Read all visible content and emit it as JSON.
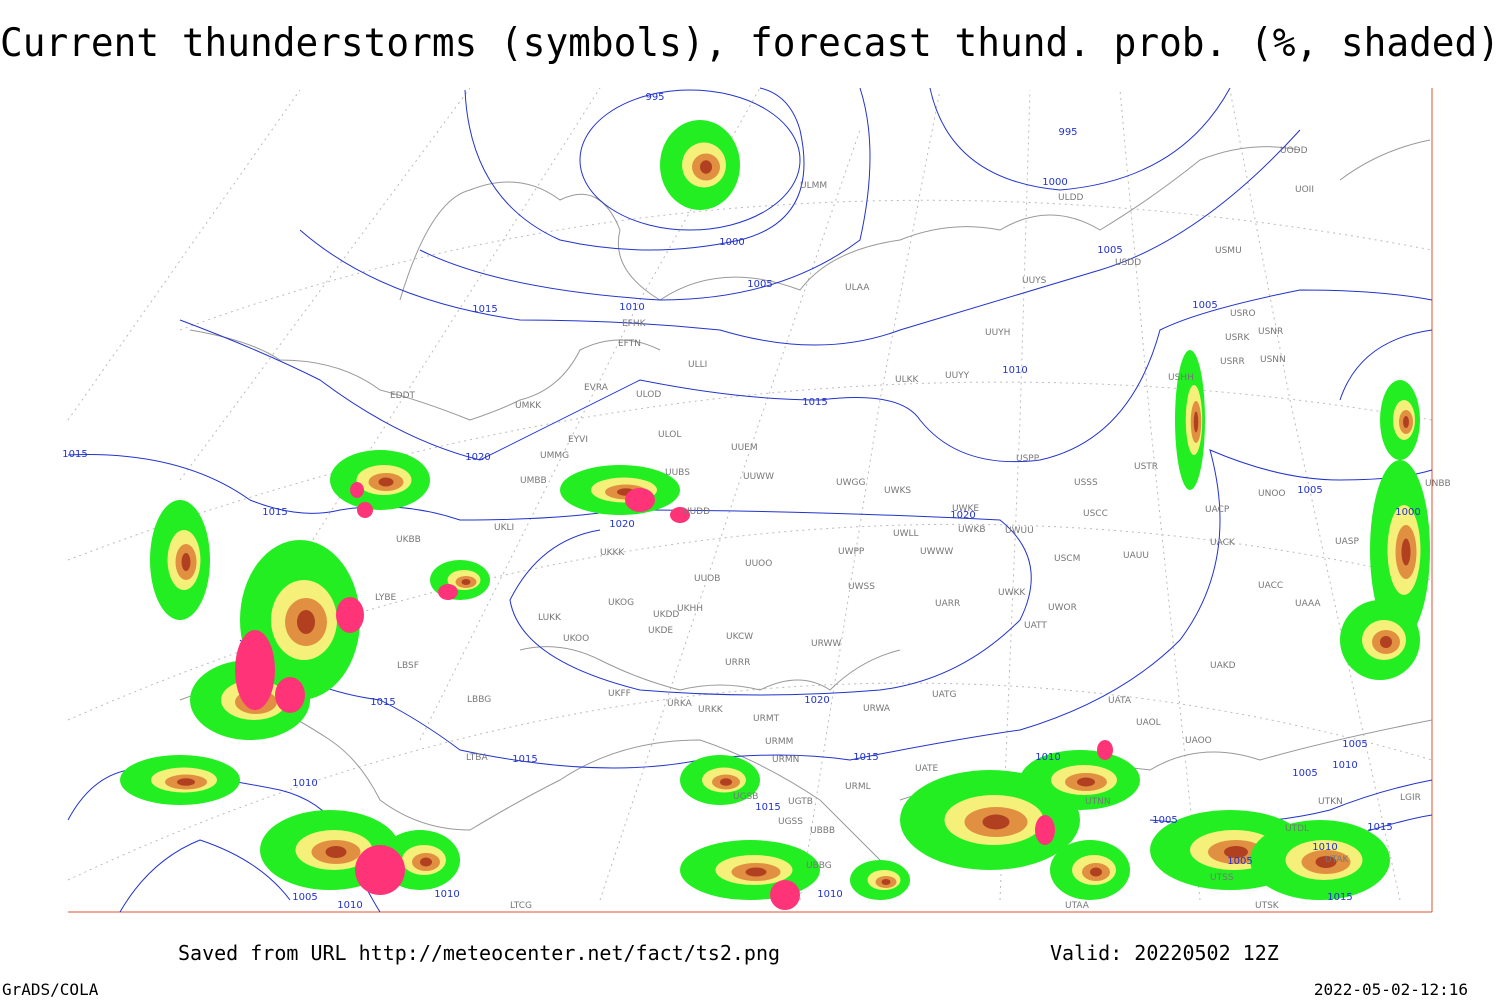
{
  "header": {
    "title": "Current thunderstorms (symbols), forecast thund. prob. (%, shaded)"
  },
  "footer": {
    "source": "Saved from URL http://meteocenter.net/fact/ts2.png",
    "valid": "Valid: 20220502 12Z",
    "software": "GrADS/COLA",
    "timestamp": "2022-05-02-12:16"
  },
  "isobar_labels": [
    "995",
    "995",
    "1000",
    "1000",
    "1005",
    "1005",
    "1005",
    "1010",
    "1010",
    "1015",
    "1015",
    "1020",
    "1020",
    "1015",
    "1015",
    "1020",
    "1015",
    "1020",
    "1015",
    "1015",
    "1015",
    "1010",
    "1010",
    "1005",
    "1010",
    "1010",
    "1010",
    "1005",
    "1000",
    "1005",
    "1010",
    "1005",
    "1005",
    "1015",
    "1010",
    "1005",
    "1015"
  ],
  "stations": [
    "ULMM",
    "ULDD",
    "UODD",
    "UOII",
    "USDD",
    "USMU",
    "ULAA",
    "UUYS",
    "USRO",
    "USRK",
    "USNR",
    "USRR",
    "USNN",
    "EFHK",
    "EFTN",
    "UUYH",
    "ULLI",
    "ULKK",
    "UUYY",
    "USHH",
    "EVRA",
    "ULOD",
    "EDDT",
    "UMKK",
    "UUEM",
    "ULOL",
    "EYVI",
    "UMMG",
    "UUWW",
    "UWGG",
    "UWKS",
    "USPP",
    "USTR",
    "USSS",
    "UNOO",
    "UNBB",
    "UMBB",
    "UUBS",
    "UUDD",
    "UWKE",
    "UWKB",
    "UWUU",
    "USCC",
    "UACP",
    "UACK",
    "UASP",
    "UKLI",
    "UKBB",
    "UKKK",
    "UWLL",
    "UWPP",
    "UWWW",
    "USCM",
    "UAUU",
    "UUOO",
    "UUOB",
    "UWSS",
    "UACC",
    "UAAA",
    "LYBE",
    "UKHH",
    "UKDD",
    "UKOG",
    "UKDE",
    "LUKK",
    "UKOO",
    "UARR",
    "UATT",
    "UWOR",
    "UWKK",
    "UKCW",
    "URWW",
    "LBSF",
    "URRR",
    "UAKD",
    "UKFF",
    "LBBG",
    "URKA",
    "URKK",
    "UATG",
    "URWA",
    "UATA",
    "UAOL",
    "URMT",
    "URMM",
    "URMN",
    "UATE",
    "UGTB",
    "UTAK",
    "UAOO",
    "LTBA",
    "UGSB",
    "UGSS",
    "UBBB",
    "URML",
    "UBBG",
    "UTNN",
    "UTDL",
    "UTKN",
    "LGIR",
    "LTCG",
    "UTSS",
    "UTAA",
    "UTSK"
  ]
}
